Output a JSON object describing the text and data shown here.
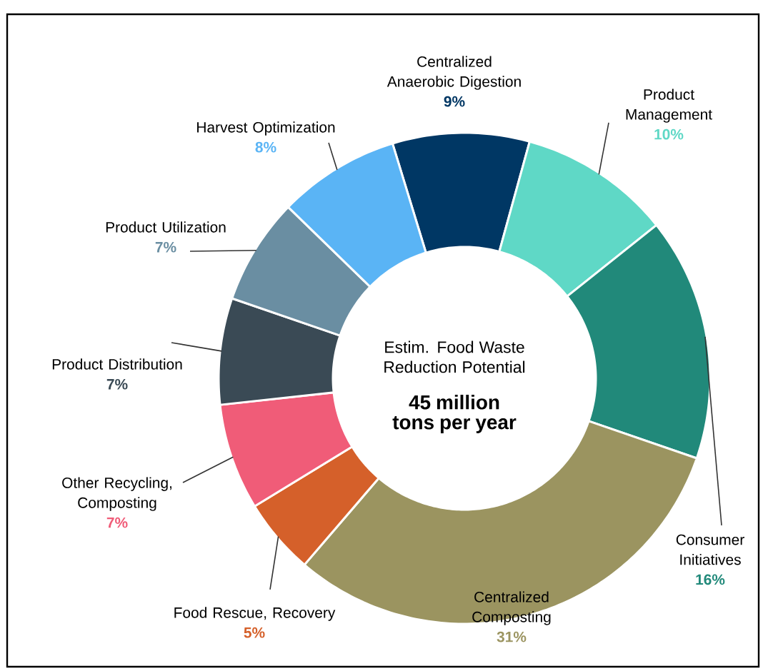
{
  "chart_data": {
    "type": "donut",
    "categories": [
      "Centralized Anaerobic Digestion",
      "Product Management",
      "Consumer Initiatives",
      "Centralized Composting",
      "Food Rescue, Recovery",
      "Other Recycling, Composting",
      "Product Distribution",
      "Product Utilization",
      "Harvest Optimization"
    ],
    "values": [
      9,
      10,
      16,
      31,
      5,
      7,
      7,
      7,
      8
    ],
    "colors": [
      "#003764",
      "#5fd8c6",
      "#21897a",
      "#9b9460",
      "#d5602a",
      "#f05c78",
      "#3a4a55",
      "#6a8ea2",
      "#5ab4f5"
    ],
    "value_labels": [
      "9%",
      "10%",
      "16%",
      "31%",
      "5%",
      "7%",
      "7%",
      "7%",
      "8%"
    ],
    "annotations": [
      "Estim. Food Waste Reduction Potential",
      "45 million tons per year"
    ]
  }
}
